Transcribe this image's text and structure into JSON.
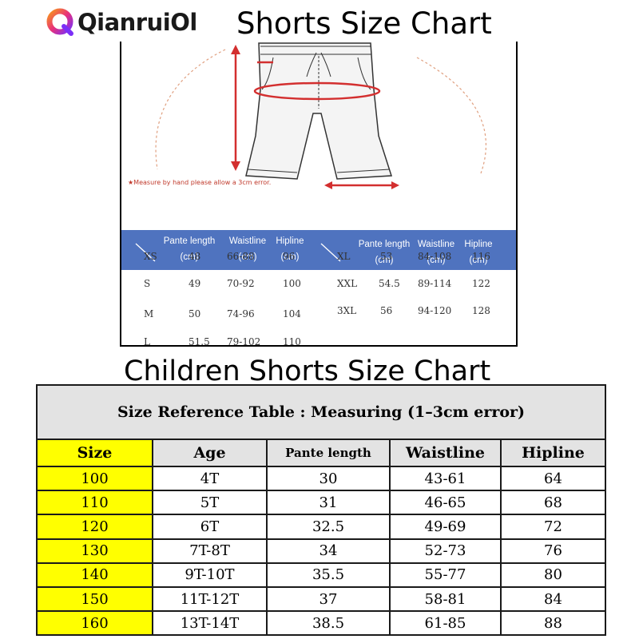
{
  "header": {
    "brand": "QianruiOl",
    "title": "Shorts Size Chart"
  },
  "adult_chart": {
    "note": "★Measure by hand please allow a 3cm error.",
    "columns": [
      {
        "l1": "Pante length",
        "l2": "(cm)"
      },
      {
        "l1": "Waistline",
        "l2": "(cm)"
      },
      {
        "l1": "Hipline",
        "l2": "(cm)"
      }
    ],
    "rows_left": [
      [
        "XS",
        "48",
        "66-88",
        "96"
      ],
      [
        "S",
        "49",
        "70-92",
        "100"
      ],
      [
        "M",
        "50",
        "74-96",
        "104"
      ],
      [
        "L",
        "51.5",
        "79-102",
        "110"
      ]
    ],
    "rows_right": [
      [
        "XL",
        "53",
        "84-108",
        "116"
      ],
      [
        "XXL",
        "54.5",
        "89-114",
        "122"
      ],
      [
        "3XL",
        "56",
        "94-120",
        "128"
      ]
    ],
    "colors": {
      "header_band": "#4f73bf",
      "measure_lines": "#d32f2f",
      "guide_arc": "#e0a080"
    }
  },
  "children_chart": {
    "title": "Children Shorts Size Chart",
    "caption": "Size Reference Table : Measuring (1–3cm error)",
    "headers": [
      "Size",
      "Age",
      "Pante length",
      "Waistline",
      "Hipline"
    ],
    "rows": [
      [
        "100",
        "4T",
        "30",
        "43-61",
        "64"
      ],
      [
        "110",
        "5T",
        "31",
        "46-65",
        "68"
      ],
      [
        "120",
        "6T",
        "32.5",
        "49-69",
        "72"
      ],
      [
        "130",
        "7T-8T",
        "34",
        "52-73",
        "76"
      ],
      [
        "140",
        "9T-10T",
        "35.5",
        "55-77",
        "80"
      ],
      [
        "150",
        "11T-12T",
        "37",
        "58-81",
        "84"
      ],
      [
        "160",
        "13T-14T",
        "38.5",
        "61-85",
        "88"
      ]
    ],
    "colors": {
      "size_column": "#ffff00",
      "header_bg": "#e3e3e3"
    }
  }
}
